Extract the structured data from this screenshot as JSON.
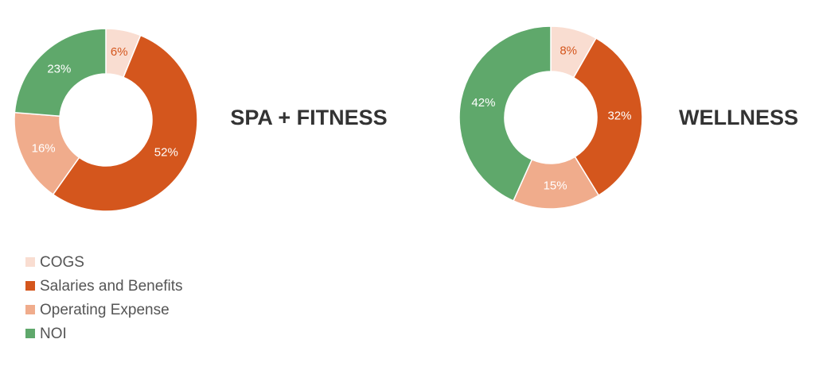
{
  "chart_data": [
    {
      "type": "pie",
      "title": "SPA + FITNESS",
      "categories": [
        "COGS",
        "Salaries and Benefits",
        "Operating Expense",
        "NOI"
      ],
      "values": [
        6,
        52,
        16,
        23
      ],
      "value_labels": [
        "6%",
        "52%",
        "16%",
        "23%"
      ],
      "colors": [
        "#f9ddd1",
        "#d4561d",
        "#f0ac8c",
        "#5fa86b"
      ],
      "label_colors": [
        "#d4561d",
        "#ffffff",
        "#ffffff",
        "#ffffff"
      ]
    },
    {
      "type": "pie",
      "title": "WELLNESS",
      "categories": [
        "COGS",
        "Salaries and Benefits",
        "Operating Expense",
        "NOI"
      ],
      "values": [
        8,
        32,
        15,
        42
      ],
      "value_labels": [
        "8%",
        "32%",
        "15%",
        "42%"
      ],
      "colors": [
        "#f9ddd1",
        "#d4561d",
        "#f0ac8c",
        "#5fa86b"
      ],
      "label_colors": [
        "#d4561d",
        "#ffffff",
        "#ffffff",
        "#ffffff"
      ]
    }
  ]
}
